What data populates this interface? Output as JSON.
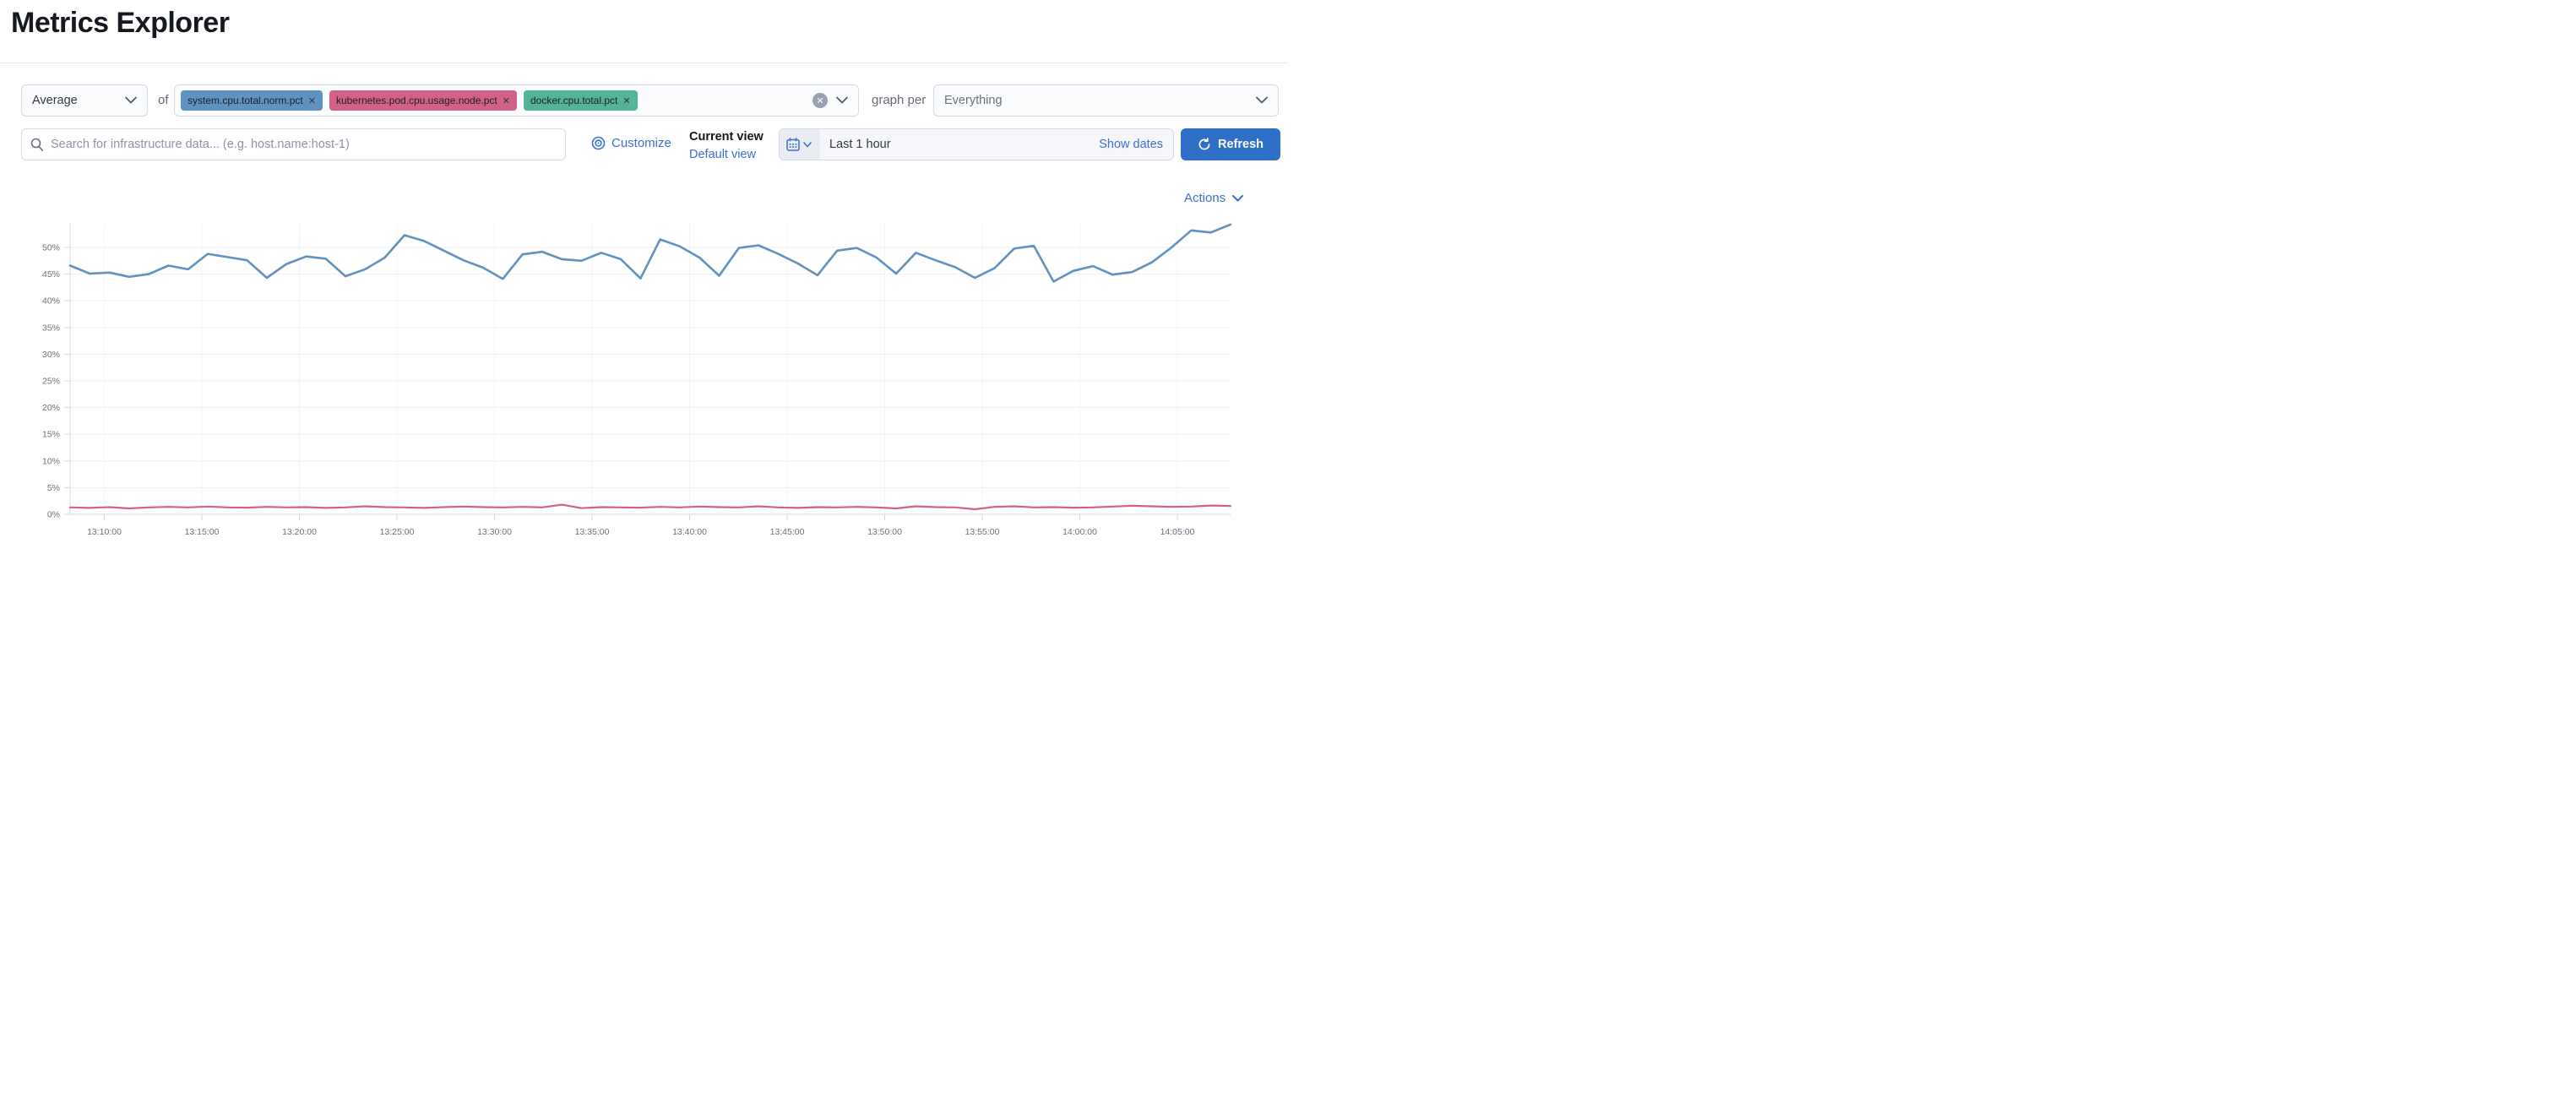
{
  "page": {
    "title": "Metrics Explorer"
  },
  "toolbar": {
    "aggregation": {
      "value": "Average"
    },
    "of_label": "of",
    "metrics": [
      {
        "label": "system.cpu.total.norm.pct",
        "color": "#6092C0"
      },
      {
        "label": "kubernetes.pod.cpu.usage.node.pct",
        "color": "#D36086"
      },
      {
        "label": "docker.cpu.total.pct",
        "color": "#54B399"
      }
    ],
    "clear_icon": "x-in-circle",
    "graph_per_label": "graph per",
    "graph_per": {
      "value": "Everything"
    }
  },
  "searchbar": {
    "value": "",
    "placeholder": "Search for infrastructure data... (e.g. host.name:host-1)"
  },
  "view_controls": {
    "customize_label": "Customize",
    "current_view_label": "Current view",
    "default_view_label": "Default view"
  },
  "datepicker": {
    "range_label": "Last 1 hour",
    "show_dates_label": "Show dates",
    "refresh_label": "Refresh"
  },
  "chart_header": {
    "actions_label": "Actions"
  },
  "chart_data": {
    "type": "line",
    "title": "",
    "xlabel": "",
    "ylabel": "",
    "legend": false,
    "grid": true,
    "x_tick_labels": [
      "13:10:00",
      "13:15:00",
      "13:20:00",
      "13:25:00",
      "13:30:00",
      "13:35:00",
      "13:40:00",
      "13:45:00",
      "13:50:00",
      "13:55:00",
      "14:00:00",
      "14:05:00"
    ],
    "y_tick_labels": [
      "0%",
      "5%",
      "10%",
      "15%",
      "20%",
      "25%",
      "30%",
      "35%",
      "40%",
      "45%",
      "50%"
    ],
    "ylim": [
      0,
      54.5
    ],
    "x_range_minutes": [
      "13:08",
      "14:07"
    ],
    "series": [
      {
        "name": "series-blue",
        "color": "#6092C0",
        "values": [
          46.6,
          45.1,
          45.3,
          44.5,
          45.0,
          46.6,
          45.9,
          48.8,
          48.2,
          47.6,
          44.3,
          46.9,
          48.3,
          47.9,
          44.6,
          45.9,
          48.1,
          52.3,
          51.2,
          49.4,
          47.6,
          46.2,
          44.1,
          48.7,
          49.2,
          47.8,
          47.5,
          49.0,
          47.8,
          44.2,
          51.5,
          50.2,
          48.1,
          44.7,
          49.9,
          50.4,
          48.8,
          47.0,
          44.8,
          49.4,
          49.9,
          48.1,
          45.1,
          49.0,
          47.6,
          46.3,
          44.3,
          46.1,
          49.8,
          50.3,
          43.6,
          45.6,
          46.5,
          44.9,
          45.4,
          47.2,
          50.0,
          53.2,
          52.8,
          54.3
        ]
      },
      {
        "name": "series-red",
        "color": "#D36086",
        "values": [
          1.3,
          1.2,
          1.35,
          1.1,
          1.3,
          1.4,
          1.3,
          1.45,
          1.3,
          1.25,
          1.4,
          1.3,
          1.35,
          1.2,
          1.3,
          1.5,
          1.35,
          1.3,
          1.2,
          1.35,
          1.45,
          1.35,
          1.3,
          1.4,
          1.3,
          1.8,
          1.15,
          1.35,
          1.3,
          1.25,
          1.4,
          1.3,
          1.45,
          1.35,
          1.3,
          1.5,
          1.3,
          1.2,
          1.35,
          1.3,
          1.4,
          1.3,
          1.1,
          1.5,
          1.35,
          1.3,
          0.95,
          1.4,
          1.5,
          1.3,
          1.35,
          1.25,
          1.3,
          1.45,
          1.6,
          1.5,
          1.4,
          1.45,
          1.65,
          1.55
        ]
      }
    ]
  }
}
